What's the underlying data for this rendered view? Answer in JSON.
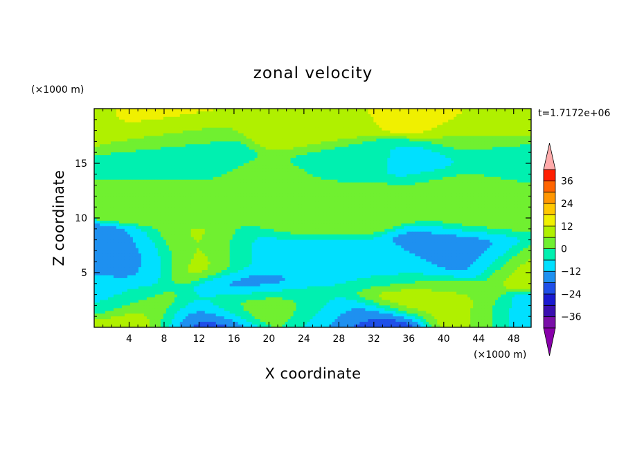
{
  "chart_data": {
    "type": "heatmap",
    "title": "zonal velocity",
    "xlabel": "X coordinate",
    "ylabel": "Z coordinate",
    "x_unit": "(×1000 m)",
    "y_unit": "(×1000 m)",
    "time_label": "t=1.7172e+06",
    "xlim": [
      0,
      50
    ],
    "ylim": [
      0,
      20
    ],
    "x_ticks": [
      4,
      8,
      12,
      16,
      20,
      24,
      28,
      32,
      36,
      40,
      44,
      48
    ],
    "y_ticks": [
      5,
      10,
      15
    ],
    "x_tick_labels": [
      "4",
      "8",
      "12",
      "16",
      "20",
      "24",
      "28",
      "32",
      "36",
      "40",
      "44",
      "48"
    ],
    "y_tick_labels": [
      "5",
      "10",
      "15"
    ],
    "colorbar": {
      "levels": [
        -42,
        -36,
        -30,
        -24,
        -18,
        -12,
        -6,
        0,
        6,
        12,
        18,
        24,
        30,
        36,
        42
      ],
      "labeled_levels": [
        36,
        24,
        12,
        0,
        -12,
        -24,
        -36
      ],
      "labels": [
        "36",
        "24",
        "12",
        "0",
        "−12",
        "−24",
        "−36"
      ],
      "colors": [
        "#7a0fa8",
        "#3a0fb0",
        "#1a1ad0",
        "#1f4fe8",
        "#1e90f0",
        "#00e0ff",
        "#00f0b0",
        "#70f030",
        "#b0f000",
        "#f0f000",
        "#ffc800",
        "#ff9600",
        "#ff6400",
        "#ff1e00"
      ],
      "under_color": "#8800aa",
      "over_color": "#ffaaaa"
    },
    "features": [
      {
        "x": 0,
        "z": 19.5,
        "value": 10
      },
      {
        "x": 5,
        "z": 19.5,
        "value": 14
      },
      {
        "x": 26,
        "z": 19,
        "value": 10
      },
      {
        "x": 37,
        "z": 19.5,
        "value": 14
      },
      {
        "x": 48,
        "z": 19,
        "value": 9
      },
      {
        "x": 8,
        "z": 17.5,
        "value": 6
      },
      {
        "x": 25,
        "z": 17.8,
        "value": 7
      },
      {
        "x": 45,
        "z": 17.5,
        "value": 6
      },
      {
        "x": 10,
        "z": 15.5,
        "value": -6
      },
      {
        "x": 30,
        "z": 15.2,
        "value": -5
      },
      {
        "x": 37,
        "z": 15,
        "value": -7
      },
      {
        "x": 47,
        "z": 15.5,
        "value": -5
      },
      {
        "x": 20,
        "z": 13.3,
        "value": 2
      },
      {
        "x": 42,
        "z": 12.5,
        "value": 4
      },
      {
        "x": 30,
        "z": 11.5,
        "value": 5
      },
      {
        "x": 10,
        "z": 11.5,
        "value": 4
      },
      {
        "x": 25,
        "z": 10,
        "value": 1
      },
      {
        "x": 46,
        "z": 10,
        "value": 2
      },
      {
        "x": 4,
        "z": 6,
        "value": -12
      },
      {
        "x": 5,
        "z": 6.5,
        "value": -16
      },
      {
        "x": 12,
        "z": 6,
        "value": 10
      },
      {
        "x": 11,
        "z": 7,
        "value": 7
      },
      {
        "x": 18,
        "z": 4,
        "value": -14
      },
      {
        "x": 18,
        "z": 6.5,
        "value": -8
      },
      {
        "x": 25.5,
        "z": 6,
        "value": -10
      },
      {
        "x": 30,
        "z": 5,
        "value": -6
      },
      {
        "x": 35,
        "z": 5,
        "value": -7
      },
      {
        "x": 41,
        "z": 7,
        "value": -12
      },
      {
        "x": 42,
        "z": 6.5,
        "value": -16
      },
      {
        "x": 44,
        "z": 7,
        "value": -14
      },
      {
        "x": 38,
        "z": 3,
        "value": 5
      },
      {
        "x": 35.5,
        "z": 2.5,
        "value": 12
      },
      {
        "x": 49,
        "z": 6,
        "value": 9
      },
      {
        "x": 19,
        "z": 1.7,
        "value": 10
      },
      {
        "x": 6,
        "z": 1.5,
        "value": 7
      },
      {
        "x": 6,
        "z": 0.2,
        "value": 15
      },
      {
        "x": 11.5,
        "z": 0.5,
        "value": -18
      },
      {
        "x": 12.5,
        "z": 0.1,
        "value": -28
      },
      {
        "x": 31.5,
        "z": 0.3,
        "value": -26
      },
      {
        "x": 30,
        "z": 1,
        "value": -16
      },
      {
        "x": 44,
        "z": 0.5,
        "value": 10
      },
      {
        "x": 48.5,
        "z": 0.5,
        "value": -14
      },
      {
        "x": 22,
        "z": 2,
        "value": -2
      },
      {
        "x": 2,
        "z": 2.5,
        "value": -8
      },
      {
        "x": 27,
        "z": 1,
        "value": -4
      },
      {
        "x": 15,
        "z": 1.5,
        "value": -6
      }
    ]
  }
}
